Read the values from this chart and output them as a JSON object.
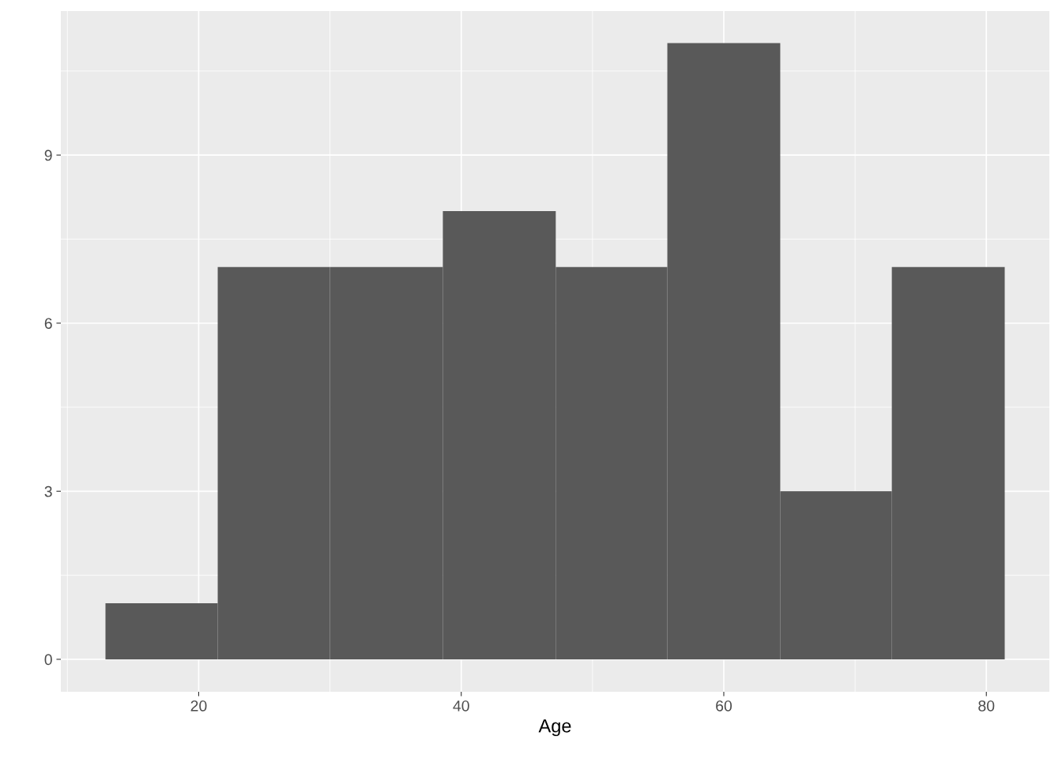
{
  "chart_data": {
    "type": "histogram",
    "xlabel": "Age",
    "bins": [
      12.9,
      21.45,
      30.0,
      38.6,
      47.2,
      55.7,
      64.3,
      72.8,
      81.4
    ],
    "values": [
      1,
      7,
      7,
      8,
      7,
      11,
      3,
      7
    ],
    "color": "#595959",
    "xlim": [
      9.5,
      84.8
    ],
    "xticks": [
      20,
      40,
      60,
      80
    ],
    "ylim": [
      -0.58,
      11.57
    ],
    "yticks": [
      0,
      3,
      6,
      9
    ],
    "grid": true
  }
}
